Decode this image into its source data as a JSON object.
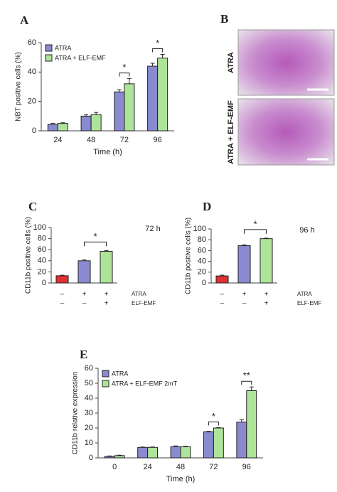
{
  "chart_data": [
    {
      "type": "bar",
      "panel": "A",
      "categories": [
        "24",
        "48",
        "72",
        "96"
      ],
      "series": [
        {
          "name": "ATRA",
          "color": "#8a8ad0",
          "values": [
            4.5,
            10,
            26.5,
            44
          ],
          "errors": [
            0.5,
            1,
            1.5,
            2
          ]
        },
        {
          "name": "ATRA + ELF-EMF",
          "color": "#aee39a",
          "values": [
            5,
            11,
            32,
            49.5
          ],
          "errors": [
            0.5,
            1.5,
            3.5,
            2.5
          ]
        }
      ],
      "ylim": [
        0,
        60
      ],
      "yticks": [
        0,
        20,
        40,
        60
      ],
      "ylabel": "NBT positive cells (%)",
      "xlabel": "Time (h)",
      "annotations": [
        "*",
        "*"
      ],
      "legend": "upper left"
    },
    {
      "type": "bar",
      "panel": "C",
      "values": [
        13,
        40,
        57
      ],
      "errors": [
        1,
        1.5,
        1.5
      ],
      "colors": [
        "#e03030",
        "#8a8ad0",
        "#aee39a"
      ],
      "ylim": [
        0,
        100
      ],
      "yticks": [
        0,
        20,
        40,
        60,
        80,
        100
      ],
      "ylabel": "CD11b positive cells (%)",
      "note": "72 h",
      "annotations": [
        "*"
      ],
      "conditions": [
        {
          "name": "ATRA",
          "marks": [
            "–",
            "+",
            "+"
          ]
        },
        {
          "name": "ELF-EMF",
          "marks": [
            "–",
            "–",
            "+"
          ]
        }
      ]
    },
    {
      "type": "bar",
      "panel": "D",
      "values": [
        13,
        69,
        82
      ],
      "errors": [
        1.5,
        1.5,
        1
      ],
      "colors": [
        "#e03030",
        "#8a8ad0",
        "#aee39a"
      ],
      "ylim": [
        0,
        100
      ],
      "yticks": [
        0,
        20,
        40,
        60,
        80,
        100
      ],
      "ylabel": "CD11b positive cells (%)",
      "note": "96 h",
      "annotations": [
        "*"
      ],
      "conditions": [
        {
          "name": "ATRA",
          "marks": [
            "–",
            "+",
            "+"
          ]
        },
        {
          "name": "ELF-EMF",
          "marks": [
            "–",
            "–",
            "+"
          ]
        }
      ]
    },
    {
      "type": "bar",
      "panel": "E",
      "categories": [
        "0",
        "24",
        "48",
        "72",
        "96"
      ],
      "series": [
        {
          "name": "ATRA",
          "color": "#8a8ad0",
          "values": [
            1,
            7,
            7.5,
            17.5,
            24
          ],
          "errors": [
            0.3,
            0.3,
            0.5,
            0.3,
            1.5
          ]
        },
        {
          "name": "ATRA + ELF-EMF 2mT",
          "color": "#aee39a",
          "values": [
            1.5,
            7,
            7.5,
            20,
            45
          ],
          "errors": [
            0.3,
            0.3,
            0.3,
            0.3,
            2.5
          ]
        }
      ],
      "ylim": [
        0,
        60
      ],
      "yticks": [
        0,
        10,
        20,
        30,
        40,
        50,
        60
      ],
      "ylabel": "CD11b relative expression",
      "xlabel": "Time (h)",
      "annotations": [
        "*",
        "**"
      ],
      "legend": "upper left"
    }
  ],
  "images": {
    "panel": "B",
    "labels": [
      "ATRA",
      "ATRA + ELF-EMF"
    ]
  }
}
